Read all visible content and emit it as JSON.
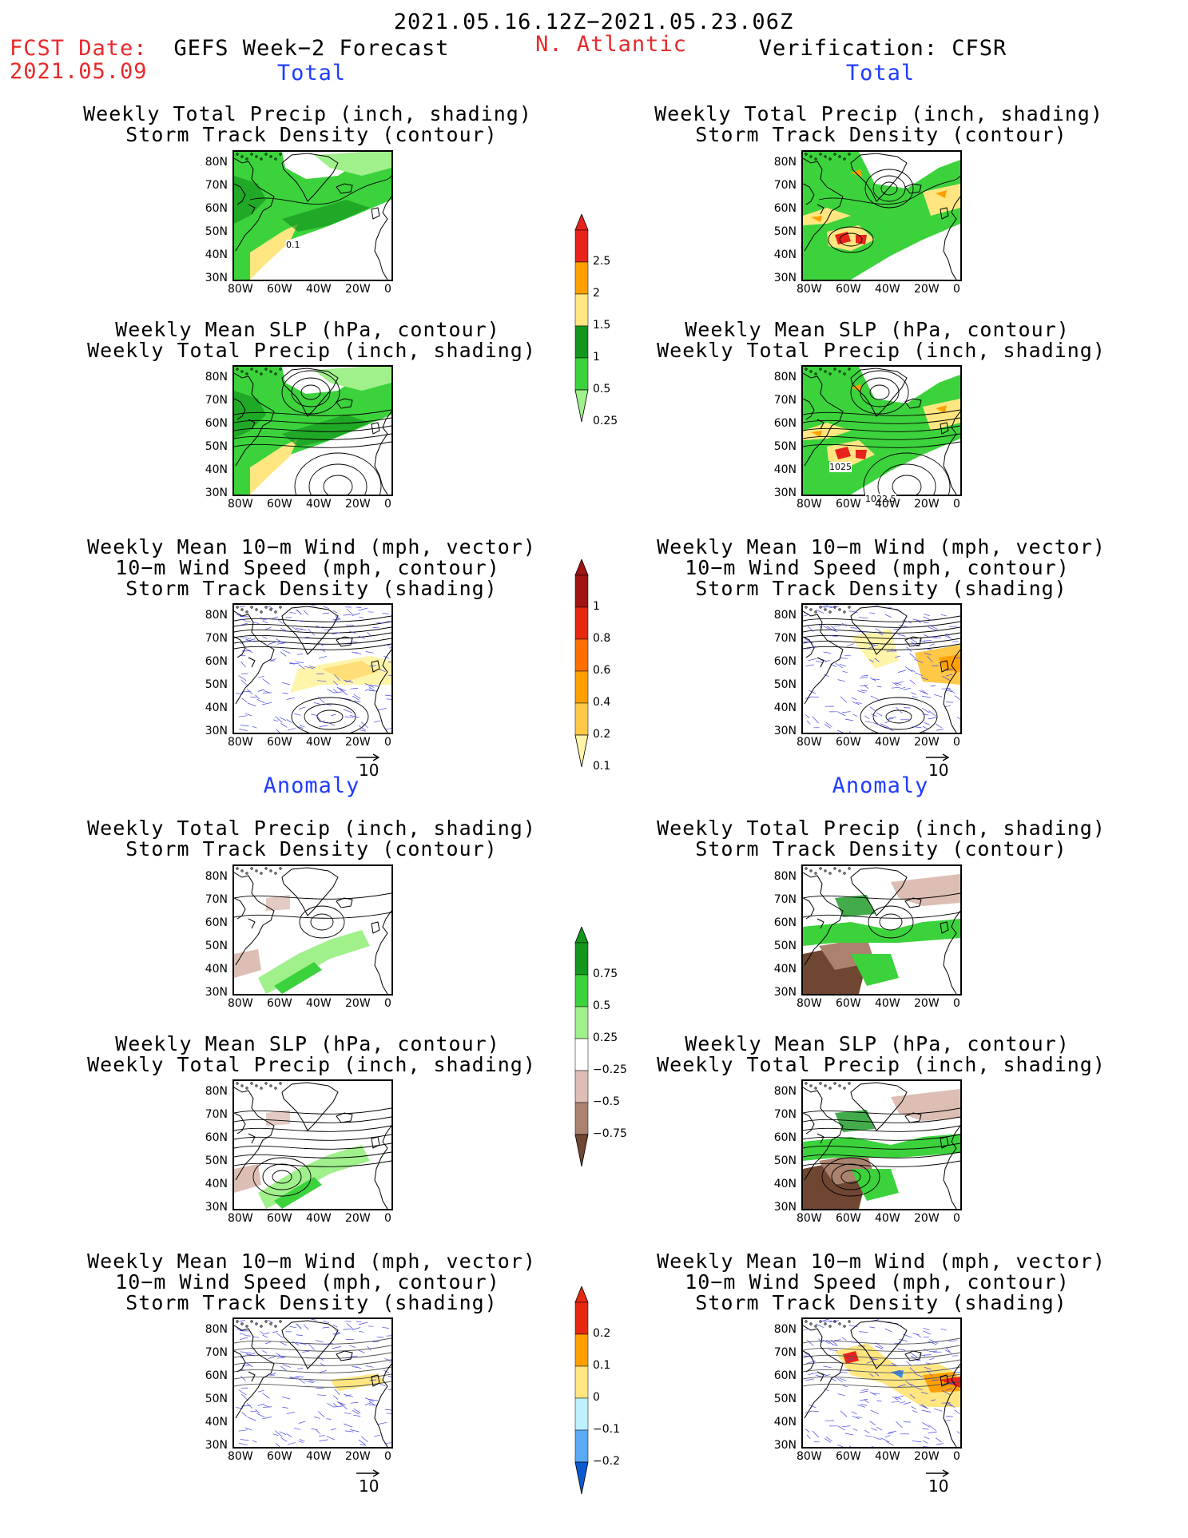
{
  "header": {
    "date_range": "2021.05.16.12Z−2021.05.23.06Z",
    "fcst_label": "FCST Date:",
    "fcst_date": "2021.05.09",
    "model": "GEFS Week−2 Forecast",
    "region": "N. Atlantic",
    "verification": "Verification: CFSR"
  },
  "sections": {
    "total": "Total",
    "anomaly": "Anomaly"
  },
  "titles": {
    "precip_track": [
      "Weekly Total Precip (inch, shading)",
      "Storm Track Density (contour)"
    ],
    "slp_precip": [
      "Weekly Mean SLP (hPa, contour)",
      "Weekly Total Precip (inch, shading)"
    ],
    "wind": [
      "Weekly Mean 10−m Wind (mph, vector)",
      "10−m Wind Speed (mph, contour)",
      "Storm Track Density (shading)"
    ]
  },
  "axes": {
    "lat_ticks": [
      "80N",
      "70N",
      "60N",
      "50N",
      "40N",
      "30N"
    ],
    "lon_ticks": [
      "80W",
      "60W",
      "40W",
      "20W",
      "0"
    ]
  },
  "vector_ref": "10",
  "contour_labels": {
    "fcst_precip_total": "0.1",
    "ver_slp_a": "1025",
    "ver_slp_b": "1022.5"
  },
  "colorbars": {
    "precip_total": {
      "labels": [
        "2.5",
        "2",
        "1.5",
        "1",
        "0.5",
        "0.25"
      ],
      "colors": [
        "#e8231c",
        "#ffa000",
        "#ffe680",
        "#14961e",
        "#3cd23c",
        "#a0f08c"
      ]
    },
    "track_total": {
      "labels": [
        "1",
        "0.8",
        "0.6",
        "0.4",
        "0.2",
        "0.1"
      ],
      "colors": [
        "#a01414",
        "#e6280f",
        "#ff6e00",
        "#ffa000",
        "#ffc846",
        "#fff5aa"
      ]
    },
    "precip_anom": {
      "labels": [
        "0.75",
        "0.5",
        "0.25",
        "−0.25",
        "−0.5",
        "−0.75"
      ],
      "colors": [
        "#14961e",
        "#3cd23c",
        "#a0f08c",
        "#ffffff",
        "#dcbeb4",
        "#aa826e",
        "#6e4632"
      ]
    },
    "track_anom": {
      "labels": [
        "0.2",
        "0.1",
        "0",
        "−0.1",
        "−0.2"
      ],
      "colors": [
        "#e6280f",
        "#ffa000",
        "#ffe680",
        "#bef0ff",
        "#5aaaf5",
        "#0a5ad2"
      ]
    }
  }
}
